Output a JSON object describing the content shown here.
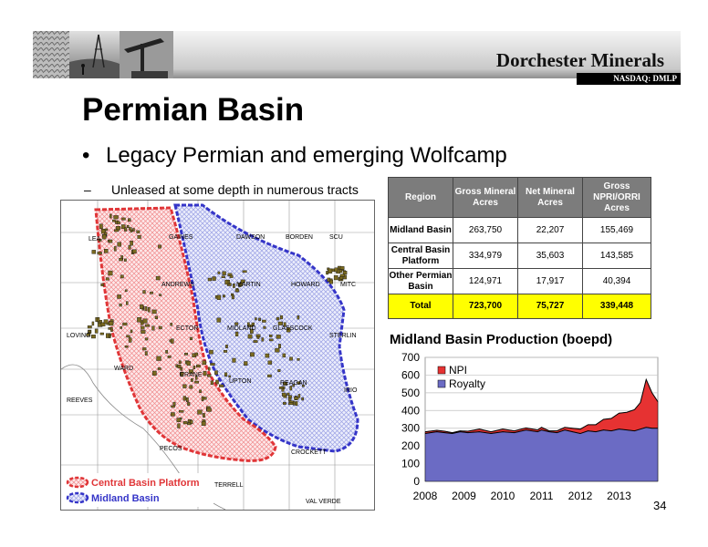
{
  "header": {
    "company": "Dorchester Minerals",
    "ticker": "NASDAQ: DMLP"
  },
  "slide": {
    "title": "Permian Basin",
    "bullet": "Legacy Permian and emerging Wolfcamp",
    "subbullet": "Unleased at some depth in numerous tracts",
    "page_number": "34"
  },
  "map": {
    "county_labels": [
      "LEA",
      "GAINES",
      "DAWSON",
      "BORDEN",
      "SCU",
      "ANDREWS",
      "MARTIN",
      "HOWARD",
      "MITC",
      "LOVING",
      "ECTOR",
      "MIDLAND",
      "GLASSCOCK",
      "STERLIN",
      "WARD",
      "CRANE",
      "UPTON",
      "REAGAN",
      "IRIO",
      "REEVES",
      "PECOS",
      "CROCKETT",
      "TERRELL",
      "VAL VERDE"
    ],
    "legend": {
      "central": "Central Basin Platform",
      "midland": "Midland Basin"
    },
    "colors": {
      "central": "#e8383a",
      "midland": "#4646d6"
    }
  },
  "table": {
    "headers": [
      "Region",
      "Gross Mineral Acres",
      "Net Mineral Acres",
      "Gross NPRI/ORRI Acres"
    ],
    "rows": [
      {
        "region": "Midland Basin",
        "gross": "263,750",
        "net": "22,207",
        "npri": "155,469"
      },
      {
        "region": "Central Basin Platform",
        "gross": "334,979",
        "net": "35,603",
        "npri": "143,585"
      },
      {
        "region": "Other Permian Basin",
        "gross": "124,971",
        "net": "17,917",
        "npri": "40,394"
      }
    ],
    "total": {
      "region": "Total",
      "gross": "723,700",
      "net": "75,727",
      "npri": "339,448"
    }
  },
  "chart_data": {
    "type": "area",
    "title": "Midland Basin Production (boepd)",
    "x_ticks": [
      "2008",
      "2009",
      "2010",
      "2011",
      "2012",
      "2013"
    ],
    "xlim": [
      2008,
      2014
    ],
    "ylim": [
      0,
      700
    ],
    "y_ticks": [
      0,
      100,
      200,
      300,
      400,
      500,
      600,
      700
    ],
    "stacked": true,
    "legend_position": "top-left",
    "x": [
      2008.0,
      2008.3,
      2008.5,
      2008.7,
      2008.9,
      2009.1,
      2009.4,
      2009.7,
      2010.0,
      2010.3,
      2010.6,
      2010.9,
      2011.0,
      2011.2,
      2011.4,
      2011.6,
      2011.8,
      2012.0,
      2012.2,
      2012.4,
      2012.6,
      2012.8,
      2013.0,
      2013.2,
      2013.4,
      2013.55,
      2013.7,
      2013.85,
      2014.0
    ],
    "series": [
      {
        "name": "Royalty",
        "color": "#6b6bc4",
        "values": [
          270,
          280,
          275,
          270,
          280,
          275,
          280,
          270,
          280,
          275,
          290,
          280,
          290,
          280,
          275,
          290,
          280,
          270,
          285,
          280,
          290,
          285,
          295,
          290,
          285,
          295,
          305,
          300,
          300
        ]
      },
      {
        "name": "NPI",
        "color": "#e63232",
        "values": [
          10,
          8,
          8,
          5,
          5,
          8,
          15,
          10,
          15,
          10,
          12,
          10,
          15,
          5,
          10,
          15,
          20,
          25,
          35,
          40,
          60,
          70,
          90,
          100,
          120,
          150,
          270,
          200,
          150
        ]
      }
    ]
  }
}
